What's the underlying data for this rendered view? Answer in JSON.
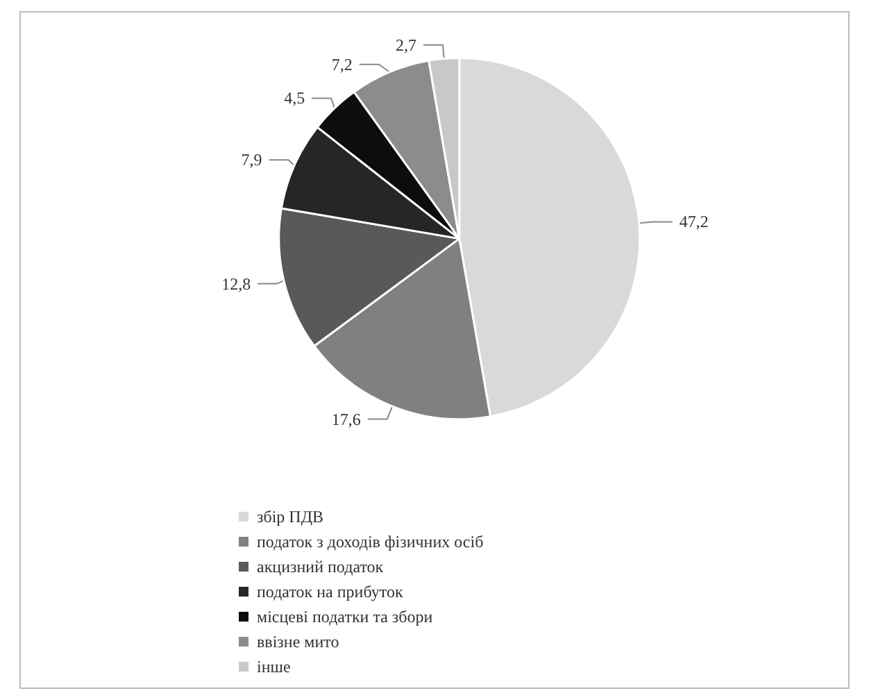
{
  "chart_data": {
    "type": "pie",
    "categories": [
      "збір ПДВ",
      "податок з доходів фізичних осіб",
      "акцизний податок",
      "податок на прибуток",
      "місцеві податки та збори",
      "ввізне мито",
      "інше"
    ],
    "values": [
      47.2,
      17.6,
      12.8,
      7.9,
      4.5,
      7.2,
      2.7
    ],
    "value_labels": [
      "47,2",
      "17,6",
      "12,8",
      "7,9",
      "4,5",
      "7,2",
      "2,7"
    ],
    "colors": [
      "#d9d9d9",
      "#808080",
      "#595959",
      "#262626",
      "#0d0d0d",
      "#8c8c8c",
      "#c8c8c8"
    ],
    "legend": "bottom"
  }
}
